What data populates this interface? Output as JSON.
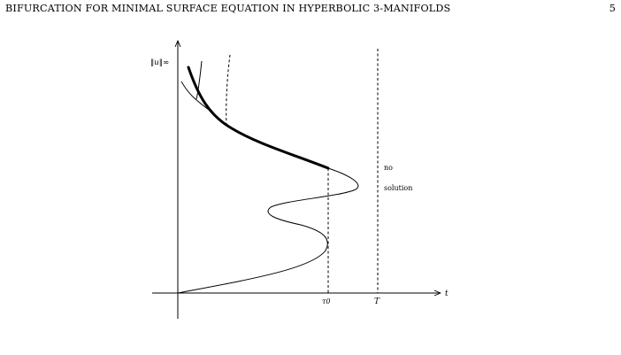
{
  "page": {
    "running_title": "BIFURCATION FOR MINIMAL SURFACE EQUATION IN HYPERBOLIC 3-MANIFOLDS",
    "page_number": "5"
  },
  "figure": {
    "y_axis_label": "‖u‖∞",
    "x_axis_label": "t",
    "tick_tau0": "τ0",
    "tick_T": "T",
    "region_label_line1": "no",
    "region_label_line2": "solution"
  }
}
